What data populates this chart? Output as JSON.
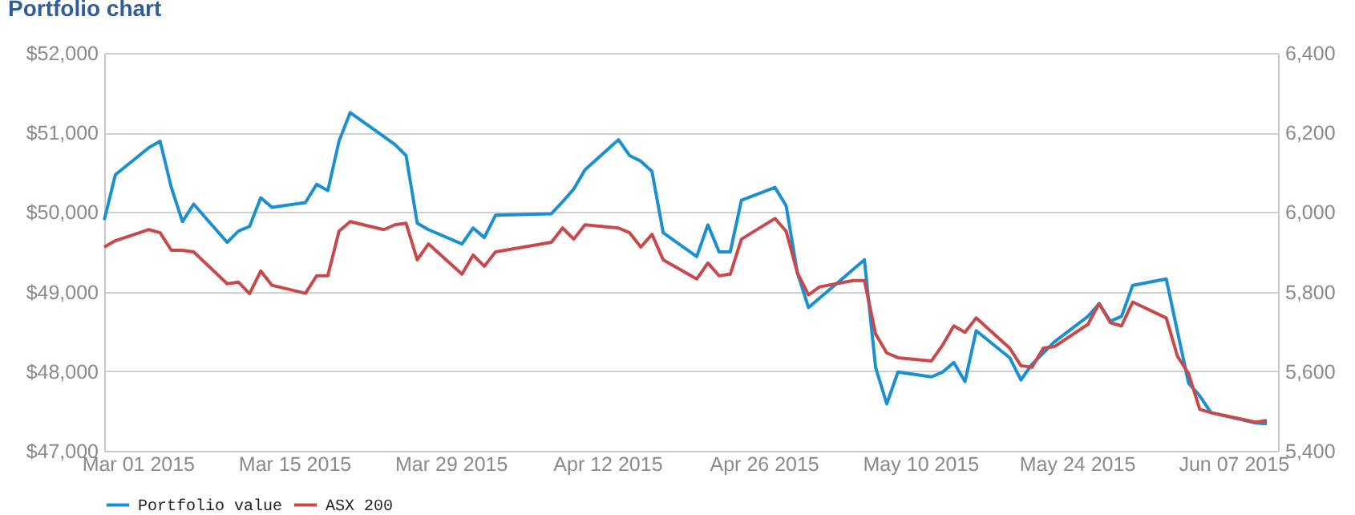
{
  "chart_data": {
    "type": "line",
    "title": "Portfolio chart",
    "x": [
      "2015-02-26",
      "2015-02-27",
      "2015-03-02",
      "2015-03-03",
      "2015-03-04",
      "2015-03-05",
      "2015-03-06",
      "2015-03-09",
      "2015-03-10",
      "2015-03-11",
      "2015-03-12",
      "2015-03-13",
      "2015-03-16",
      "2015-03-17",
      "2015-03-18",
      "2015-03-19",
      "2015-03-20",
      "2015-03-23",
      "2015-03-24",
      "2015-03-25",
      "2015-03-26",
      "2015-03-27",
      "2015-03-30",
      "2015-03-31",
      "2015-04-01",
      "2015-04-02",
      "2015-04-07",
      "2015-04-08",
      "2015-04-09",
      "2015-04-10",
      "2015-04-13",
      "2015-04-14",
      "2015-04-15",
      "2015-04-16",
      "2015-04-17",
      "2015-04-20",
      "2015-04-21",
      "2015-04-22",
      "2015-04-23",
      "2015-04-24",
      "2015-04-27",
      "2015-04-28",
      "2015-04-29",
      "2015-04-30",
      "2015-05-01",
      "2015-05-04",
      "2015-05-05",
      "2015-05-06",
      "2015-05-07",
      "2015-05-08",
      "2015-05-11",
      "2015-05-12",
      "2015-05-13",
      "2015-05-14",
      "2015-05-15",
      "2015-05-18",
      "2015-05-19",
      "2015-05-20",
      "2015-05-21",
      "2015-05-22",
      "2015-05-25",
      "2015-05-26",
      "2015-05-27",
      "2015-05-28",
      "2015-05-29",
      "2015-06-01",
      "2015-06-02",
      "2015-06-03",
      "2015-06-04",
      "2015-06-05",
      "2015-06-09",
      "2015-06-10"
    ],
    "series": [
      {
        "name": "Portfolio value",
        "color": "#1a8fd1",
        "values": [
          49900,
          50470,
          50810,
          50890,
          50310,
          49880,
          50100,
          49620,
          49760,
          49820,
          50180,
          50060,
          50120,
          50350,
          50270,
          50890,
          51250,
          50950,
          50850,
          50710,
          49860,
          49780,
          49600,
          49800,
          49680,
          49960,
          49980,
          50130,
          50290,
          50530,
          50910,
          50710,
          50640,
          50510,
          49740,
          49440,
          49840,
          49500,
          49500,
          50150,
          50310,
          50080,
          49240,
          48800,
          48920,
          49280,
          49400,
          48050,
          47590,
          47990,
          47930,
          47990,
          48110,
          47870,
          48510,
          48170,
          47890,
          48090,
          48230,
          48370,
          48690,
          48850,
          48630,
          48690,
          49080,
          49160,
          48500,
          47850,
          47690,
          47480,
          47350,
          47340
        ]
      },
      {
        "name": "ASX 200",
        "color": "#c9484a",
        "axis": "y2",
        "values": [
          5912,
          5928,
          5956,
          5948,
          5904,
          5904,
          5900,
          5820,
          5824,
          5795,
          5852,
          5816,
          5796,
          5840,
          5840,
          5952,
          5976,
          5956,
          5968,
          5972,
          5880,
          5920,
          5844,
          5892,
          5864,
          5900,
          5924,
          5960,
          5932,
          5968,
          5960,
          5948,
          5912,
          5944,
          5880,
          5832,
          5872,
          5840,
          5844,
          5932,
          5984,
          5952,
          5848,
          5792,
          5812,
          5828,
          5828,
          5694,
          5646,
          5634,
          5626,
          5666,
          5714,
          5698,
          5734,
          5658,
          5614,
          5610,
          5658,
          5662,
          5718,
          5770,
          5722,
          5714,
          5774,
          5734,
          5638,
          5594,
          5504,
          5496,
          5472,
          5476
        ]
      }
    ],
    "xlim": [
      "2015-02-26",
      "2015-06-11"
    ],
    "xticks": [
      {
        "value": "2015-03-01",
        "label": "Mar 01 2015"
      },
      {
        "value": "2015-03-15",
        "label": "Mar 15 2015"
      },
      {
        "value": "2015-03-29",
        "label": "Mar 29 2015"
      },
      {
        "value": "2015-04-12",
        "label": "Apr 12 2015"
      },
      {
        "value": "2015-04-26",
        "label": "Apr 26 2015"
      },
      {
        "value": "2015-05-10",
        "label": "May 10 2015"
      },
      {
        "value": "2015-05-24",
        "label": "May 24 2015"
      },
      {
        "value": "2015-06-07",
        "label": "Jun 07 2015"
      }
    ],
    "ylim": [
      47000,
      52000
    ],
    "yticks": [
      {
        "value": 47000,
        "label": "$47,000"
      },
      {
        "value": 48000,
        "label": "$48,000"
      },
      {
        "value": 49000,
        "label": "$49,000"
      },
      {
        "value": 50000,
        "label": "$50,000"
      },
      {
        "value": 51000,
        "label": "$51,000"
      },
      {
        "value": 52000,
        "label": "$52,000"
      }
    ],
    "y2lim": [
      5400,
      6400
    ],
    "y2ticks": [
      {
        "value": 5400,
        "label": "5,400"
      },
      {
        "value": 5600,
        "label": "5,600"
      },
      {
        "value": 5800,
        "label": "5,800"
      },
      {
        "value": 6000,
        "label": "6,000"
      },
      {
        "value": 6200,
        "label": "6,200"
      },
      {
        "value": 6400,
        "label": "6,400"
      }
    ],
    "grid": "y",
    "legend": "bottom"
  }
}
